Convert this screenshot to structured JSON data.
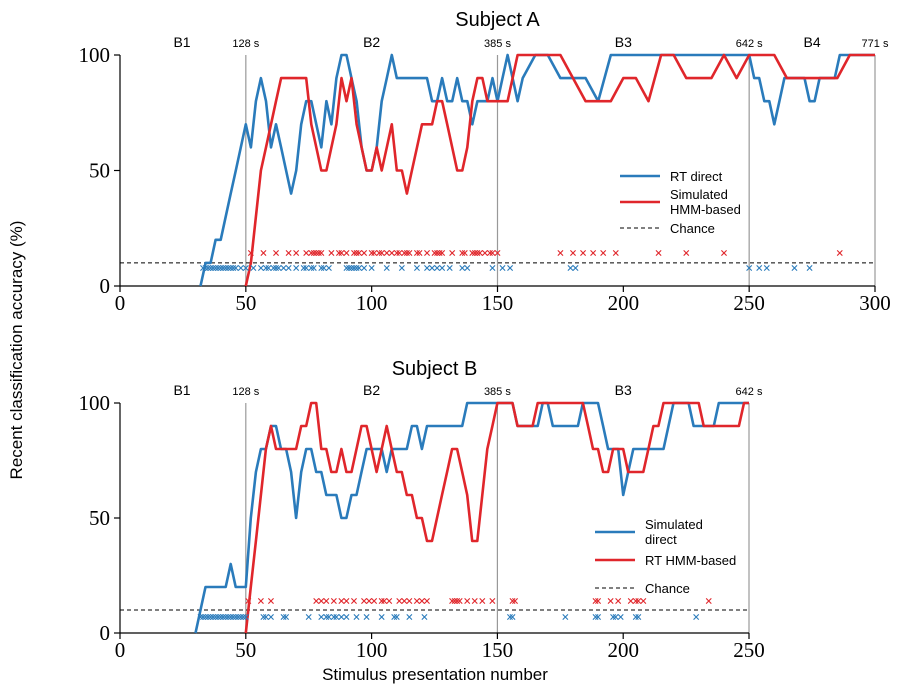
{
  "figure": {
    "ylabel": "Recent classification accuracy (%)",
    "xlabel": "Stimulus presentation number"
  },
  "colors": {
    "blue": "#2a7bbb",
    "red": "#e0262b",
    "grid": "#999999",
    "axis": "#000000"
  },
  "chart_data": [
    {
      "type": "line",
      "title": "Subject A",
      "xlim": [
        0,
        300
      ],
      "ylim": [
        0,
        100
      ],
      "xticks": [
        0,
        50,
        100,
        150,
        200,
        250,
        300
      ],
      "yticks": [
        0,
        50,
        100
      ],
      "blocks": [
        "B1",
        "B2",
        "B3",
        "B4"
      ],
      "block_centers": [
        25,
        100,
        200,
        275
      ],
      "boundaries": [
        {
          "x": 50,
          "label": "128 s"
        },
        {
          "x": 150,
          "label": "385 s"
        },
        {
          "x": 250,
          "label": "642 s"
        },
        {
          "x": 300,
          "label": "771 s"
        }
      ],
      "chance": 10,
      "series": [
        {
          "name": "RT direct",
          "color": "#2a7bbb",
          "x": [
            32,
            34,
            36,
            38,
            40,
            42,
            44,
            46,
            48,
            50,
            52,
            54,
            56,
            58,
            60,
            62,
            64,
            66,
            68,
            70,
            72,
            74,
            76,
            78,
            80,
            82,
            84,
            86,
            88,
            90,
            92,
            94,
            96,
            98,
            100,
            102,
            104,
            106,
            108,
            110,
            112,
            114,
            116,
            118,
            120,
            122,
            124,
            126,
            128,
            130,
            132,
            134,
            136,
            138,
            140,
            142,
            144,
            146,
            148,
            150,
            152,
            154,
            156,
            158,
            160,
            165,
            170,
            175,
            180,
            185,
            190,
            195,
            200,
            205,
            210,
            215,
            220,
            225,
            230,
            235,
            240,
            245,
            250,
            252,
            254,
            256,
            258,
            260,
            262,
            264,
            266,
            268,
            270,
            272,
            274,
            276,
            278,
            280,
            282,
            284,
            286,
            288,
            290,
            292,
            294,
            296,
            298,
            300
          ],
          "y": [
            0,
            10,
            10,
            20,
            20,
            30,
            40,
            50,
            60,
            70,
            60,
            80,
            90,
            80,
            60,
            70,
            60,
            50,
            40,
            50,
            70,
            80,
            80,
            70,
            60,
            80,
            70,
            90,
            100,
            100,
            90,
            80,
            60,
            50,
            50,
            60,
            80,
            90,
            100,
            90,
            90,
            90,
            90,
            90,
            90,
            90,
            80,
            80,
            90,
            80,
            80,
            90,
            80,
            80,
            70,
            80,
            80,
            80,
            90,
            80,
            90,
            100,
            90,
            80,
            90,
            100,
            100,
            90,
            90,
            90,
            80,
            100,
            100,
            100,
            100,
            100,
            100,
            100,
            100,
            100,
            100,
            100,
            100,
            90,
            90,
            80,
            80,
            70,
            80,
            90,
            90,
            90,
            90,
            90,
            80,
            80,
            90,
            90,
            90,
            90,
            100,
            100,
            100,
            100,
            100,
            100,
            100,
            100
          ]
        },
        {
          "name": "Simulated HMM-based",
          "color": "#e0262b",
          "x": [
            50,
            52,
            54,
            56,
            58,
            60,
            62,
            64,
            66,
            68,
            70,
            72,
            74,
            76,
            78,
            80,
            82,
            84,
            86,
            88,
            90,
            92,
            94,
            96,
            98,
            100,
            102,
            104,
            106,
            108,
            110,
            112,
            114,
            116,
            118,
            120,
            122,
            124,
            126,
            128,
            130,
            132,
            134,
            136,
            138,
            140,
            142,
            144,
            146,
            148,
            150,
            152,
            154,
            156,
            158,
            160,
            165,
            170,
            175,
            180,
            185,
            190,
            195,
            200,
            205,
            210,
            215,
            220,
            225,
            230,
            235,
            240,
            245,
            250,
            255,
            260,
            265,
            270,
            275,
            280,
            285,
            290,
            295,
            300
          ],
          "y": [
            0,
            10,
            30,
            50,
            60,
            70,
            80,
            90,
            90,
            90,
            90,
            90,
            90,
            70,
            60,
            50,
            50,
            60,
            70,
            90,
            80,
            90,
            70,
            60,
            50,
            50,
            60,
            50,
            60,
            70,
            50,
            50,
            40,
            50,
            60,
            70,
            70,
            70,
            80,
            80,
            70,
            60,
            50,
            50,
            60,
            80,
            90,
            90,
            80,
            80,
            80,
            80,
            80,
            90,
            100,
            100,
            100,
            100,
            100,
            90,
            80,
            80,
            80,
            90,
            90,
            80,
            100,
            100,
            90,
            90,
            90,
            100,
            90,
            100,
            100,
            100,
            90,
            90,
            90,
            90,
            90,
            100,
            100,
            100
          ]
        }
      ],
      "markers": {
        "red_x": [
          52,
          57,
          62,
          67,
          70,
          74,
          76,
          77,
          78,
          79,
          80,
          84,
          87,
          88,
          90,
          93,
          94,
          95,
          97,
          100,
          101,
          103,
          104,
          106,
          108,
          110,
          111,
          113,
          114,
          115,
          118,
          119,
          122,
          125,
          126,
          127,
          128,
          132,
          136,
          137,
          140,
          141,
          142,
          143,
          145,
          147,
          148,
          150,
          175,
          180,
          184,
          188,
          192,
          197,
          214,
          225,
          240,
          286
        ],
        "blue_x": [
          33,
          34,
          35,
          36,
          37,
          38,
          39,
          40,
          41,
          42,
          43,
          44,
          45,
          46,
          48,
          50,
          53,
          56,
          58,
          59,
          61,
          62,
          63,
          65,
          67,
          70,
          73,
          74,
          76,
          77,
          80,
          81,
          83,
          90,
          91,
          92,
          93,
          94,
          95,
          97,
          100,
          106,
          112,
          118,
          122,
          124,
          126,
          128,
          131,
          136,
          138,
          148,
          152,
          155,
          179,
          181,
          250,
          254,
          257,
          268,
          274
        ]
      }
    },
    {
      "type": "line",
      "title": "Subject B",
      "xlim": [
        0,
        250
      ],
      "ylim": [
        0,
        100
      ],
      "xticks": [
        0,
        50,
        100,
        150,
        200,
        250
      ],
      "yticks": [
        0,
        50,
        100
      ],
      "blocks": [
        "B1",
        "B2",
        "B3"
      ],
      "block_centers": [
        25,
        100,
        200
      ],
      "boundaries": [
        {
          "x": 50,
          "label": "128 s"
        },
        {
          "x": 150,
          "label": "385 s"
        },
        {
          "x": 250,
          "label": "642 s"
        }
      ],
      "chance": 10,
      "series": [
        {
          "name": "Simulated direct",
          "color": "#2a7bbb",
          "x": [
            30,
            32,
            34,
            36,
            38,
            40,
            42,
            44,
            46,
            48,
            50,
            52,
            54,
            56,
            58,
            60,
            62,
            64,
            66,
            68,
            70,
            72,
            74,
            76,
            78,
            80,
            82,
            84,
            86,
            88,
            90,
            92,
            94,
            96,
            98,
            100,
            102,
            104,
            106,
            108,
            110,
            112,
            114,
            116,
            118,
            120,
            122,
            124,
            126,
            128,
            130,
            132,
            134,
            136,
            138,
            140,
            142,
            144,
            146,
            148,
            150,
            152,
            154,
            156,
            158,
            160,
            162,
            164,
            166,
            168,
            170,
            172,
            174,
            176,
            178,
            180,
            182,
            184,
            186,
            188,
            190,
            192,
            194,
            196,
            198,
            200,
            202,
            204,
            206,
            208,
            210,
            212,
            214,
            216,
            218,
            220,
            222,
            224,
            226,
            228,
            230,
            232,
            234,
            236,
            238,
            240,
            242,
            244,
            246,
            248,
            250
          ],
          "y": [
            0,
            10,
            20,
            20,
            20,
            20,
            20,
            30,
            20,
            20,
            20,
            50,
            70,
            80,
            80,
            90,
            90,
            80,
            80,
            70,
            50,
            70,
            80,
            80,
            70,
            70,
            60,
            60,
            60,
            50,
            50,
            60,
            60,
            70,
            80,
            80,
            80,
            80,
            70,
            80,
            80,
            80,
            80,
            90,
            90,
            80,
            90,
            90,
            90,
            90,
            90,
            90,
            90,
            90,
            100,
            100,
            100,
            100,
            100,
            100,
            100,
            100,
            100,
            100,
            90,
            90,
            90,
            90,
            90,
            100,
            100,
            90,
            90,
            90,
            90,
            90,
            90,
            100,
            100,
            100,
            100,
            90,
            80,
            80,
            80,
            60,
            70,
            80,
            80,
            80,
            80,
            80,
            80,
            80,
            90,
            100,
            100,
            100,
            100,
            90,
            90,
            90,
            90,
            90,
            100,
            100,
            100,
            100,
            100,
            100,
            100
          ]
        },
        {
          "name": "RT HMM-based",
          "color": "#e0262b",
          "x": [
            50,
            52,
            54,
            56,
            58,
            60,
            62,
            64,
            66,
            68,
            70,
            72,
            74,
            76,
            78,
            80,
            82,
            84,
            86,
            88,
            90,
            92,
            94,
            96,
            98,
            100,
            102,
            104,
            106,
            108,
            110,
            112,
            114,
            116,
            118,
            120,
            122,
            124,
            126,
            128,
            130,
            132,
            134,
            136,
            138,
            140,
            142,
            144,
            146,
            148,
            150,
            152,
            154,
            156,
            158,
            160,
            162,
            164,
            166,
            168,
            170,
            172,
            174,
            176,
            178,
            180,
            182,
            184,
            186,
            188,
            190,
            192,
            194,
            196,
            198,
            200,
            202,
            204,
            206,
            208,
            210,
            212,
            214,
            216,
            218,
            220,
            222,
            224,
            226,
            228,
            230,
            232,
            234,
            236,
            238,
            240,
            242,
            244,
            246,
            248,
            250
          ],
          "y": [
            0,
            20,
            40,
            60,
            80,
            90,
            80,
            80,
            80,
            80,
            80,
            90,
            90,
            100,
            100,
            80,
            80,
            70,
            70,
            80,
            70,
            70,
            80,
            90,
            90,
            80,
            70,
            80,
            90,
            80,
            70,
            70,
            60,
            60,
            50,
            50,
            40,
            40,
            50,
            60,
            70,
            80,
            80,
            70,
            60,
            40,
            40,
            60,
            80,
            90,
            100,
            100,
            100,
            100,
            90,
            90,
            90,
            90,
            100,
            100,
            100,
            100,
            100,
            100,
            100,
            100,
            100,
            100,
            90,
            80,
            80,
            70,
            70,
            80,
            80,
            80,
            70,
            70,
            70,
            70,
            80,
            90,
            90,
            100,
            100,
            100,
            100,
            100,
            100,
            100,
            100,
            90,
            90,
            90,
            90,
            90,
            90,
            90,
            90,
            100,
            100
          ]
        }
      ],
      "markers": {
        "red_x": [
          51,
          56,
          60,
          78,
          80,
          82,
          85,
          88,
          90,
          93,
          97,
          99,
          101,
          104,
          105,
          107,
          111,
          113,
          115,
          118,
          120,
          122,
          132,
          133,
          134,
          135,
          138,
          141,
          144,
          148,
          156,
          157,
          189,
          190,
          195,
          198,
          203,
          205,
          206,
          208,
          234
        ],
        "blue_x": [
          32,
          33,
          34,
          35,
          36,
          37,
          38,
          39,
          40,
          41,
          42,
          43,
          44,
          45,
          46,
          47,
          48,
          49,
          50,
          57,
          58,
          60,
          65,
          66,
          75,
          80,
          82,
          83,
          85,
          86,
          88,
          90,
          94,
          98,
          104,
          109,
          110,
          115,
          121,
          155,
          156,
          177,
          189,
          190,
          196,
          197,
          199,
          205,
          206,
          229
        ]
      }
    }
  ],
  "legends": [
    [
      {
        "label": "RT direct",
        "style": "blue"
      },
      {
        "label": "Simulated",
        "label2": "HMM-based",
        "style": "red"
      },
      {
        "label": "Chance",
        "style": "dash"
      }
    ],
    [
      {
        "label": "Simulated",
        "label2": "direct",
        "style": "blue"
      },
      {
        "label": "RT HMM-based",
        "style": "red"
      },
      {
        "label": "Chance",
        "style": "dash"
      }
    ]
  ]
}
